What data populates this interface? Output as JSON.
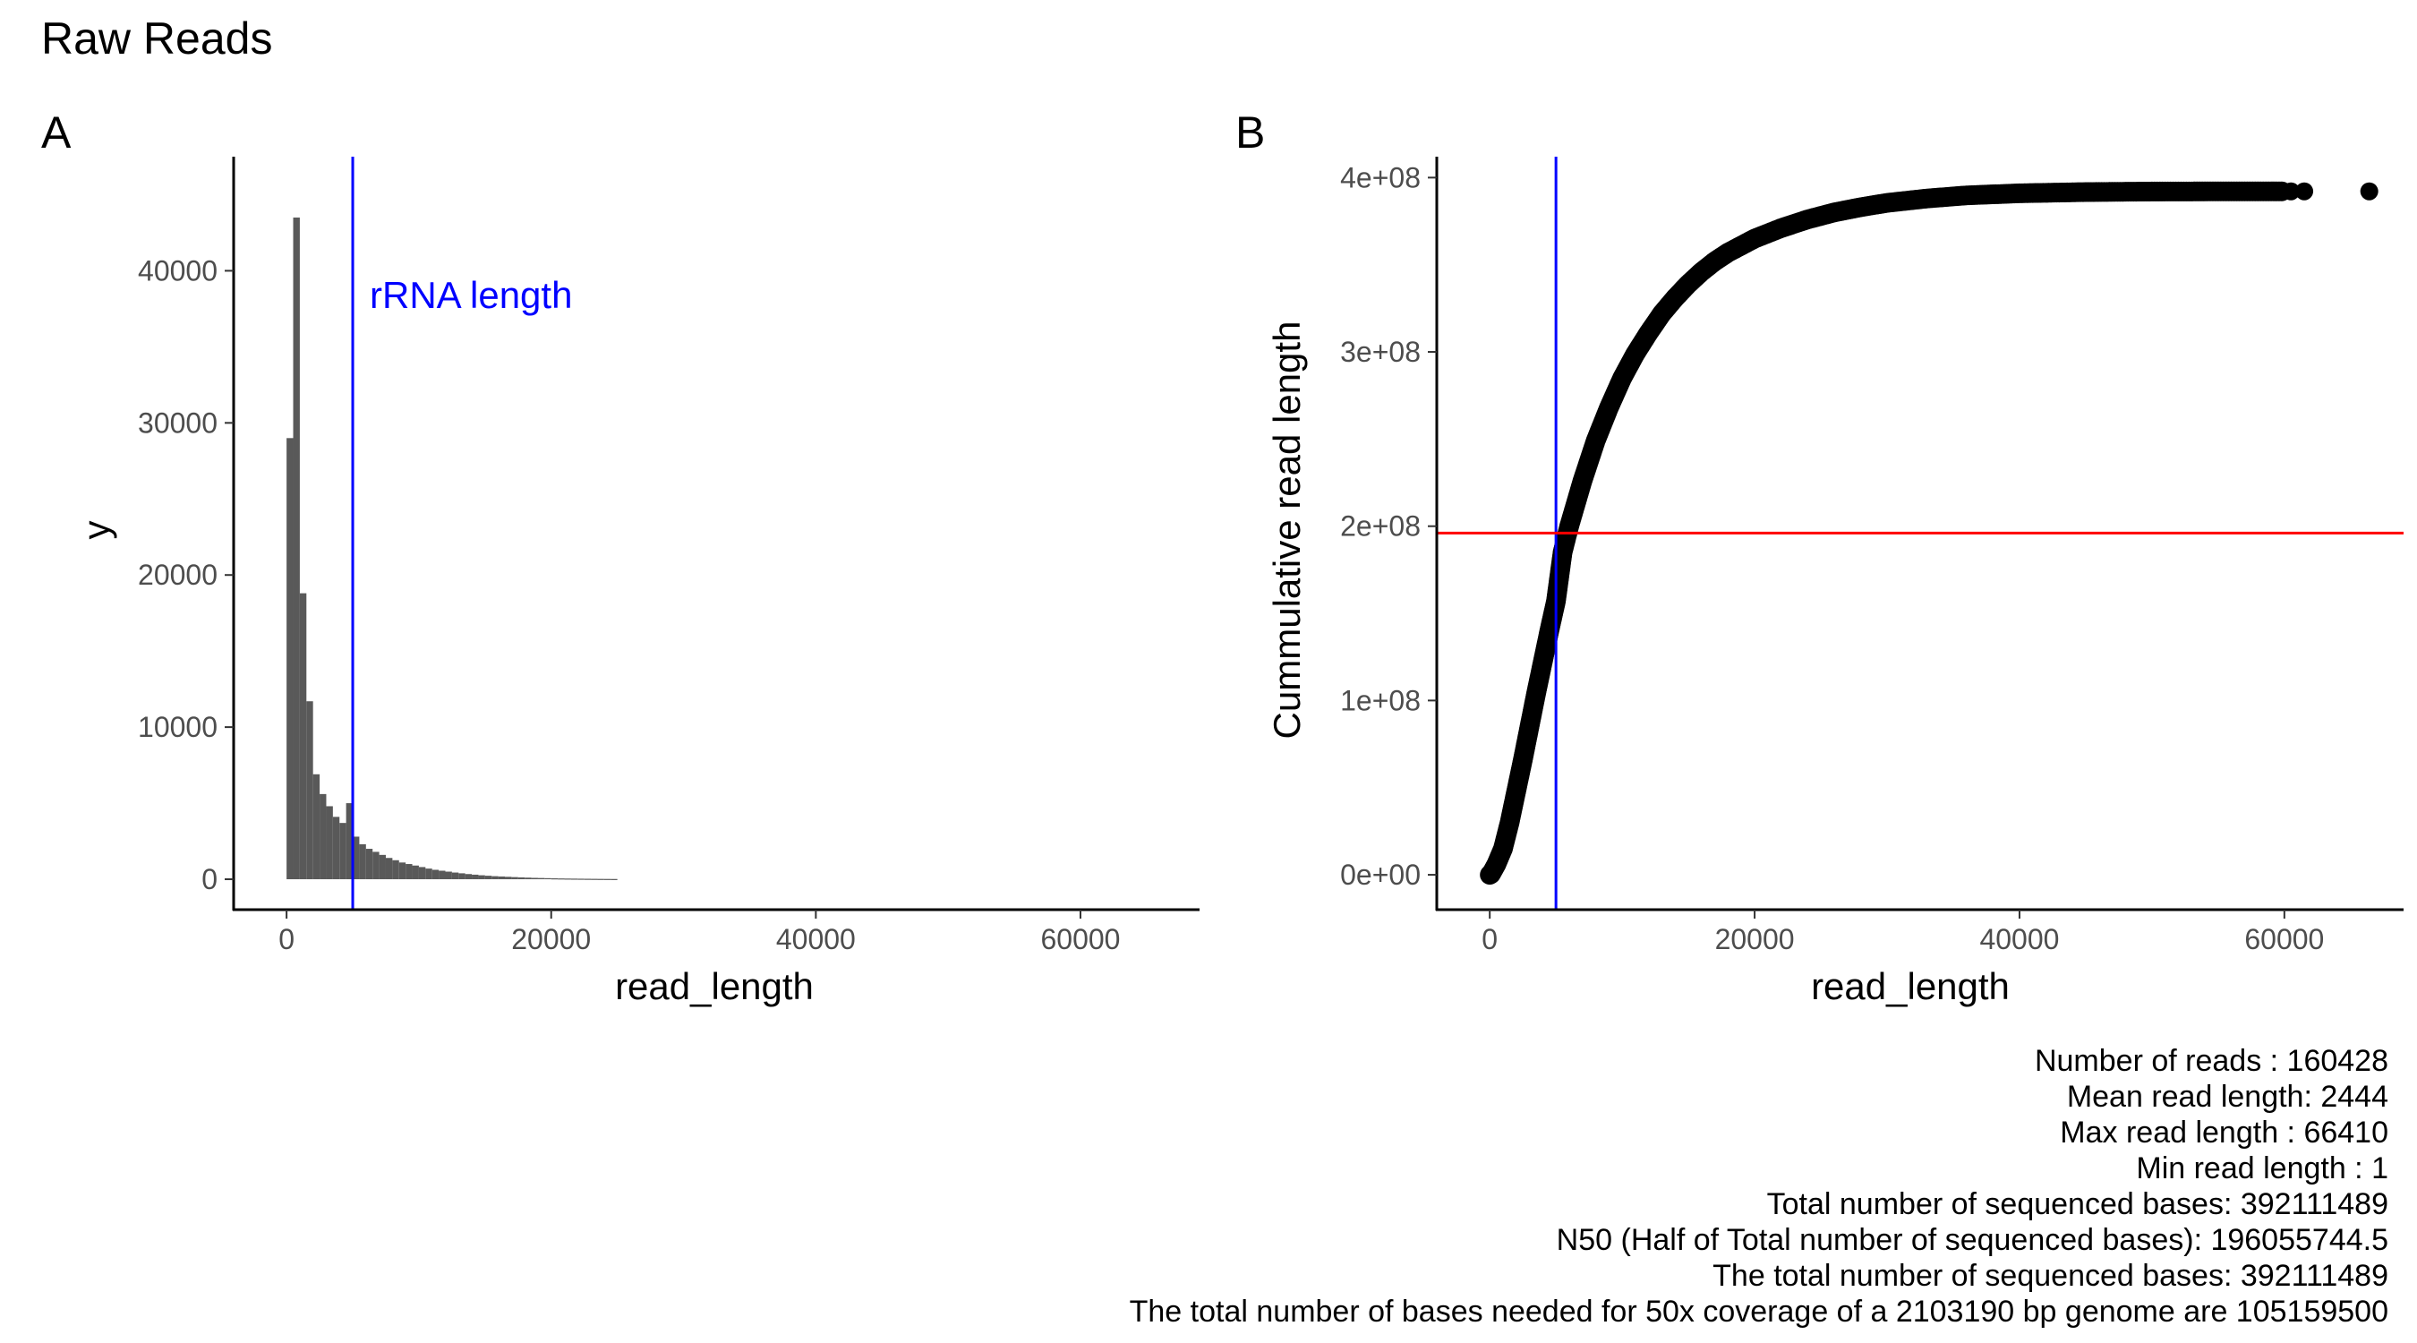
{
  "figure": {
    "title": "Raw Reads",
    "stats_lines": [
      "Number of reads : 160428",
      "Mean read length: 2444",
      "Max read length : 66410",
      "Min read length : 1",
      "Total number of sequenced bases: 392111489",
      "N50 (Half of Total number of sequenced bases): 196055744.5",
      "The total number of sequenced bases: 392111489",
      "The total number of bases needed for 50x coverage of a 2103190 bp genome are  105159500"
    ]
  },
  "chart_data": [
    {
      "panel": "A",
      "type": "bar",
      "xlabel": "read_length",
      "ylabel": "y",
      "xlim": [
        -4000,
        69000
      ],
      "ylim": [
        -2000,
        47500
      ],
      "x_ticks": [
        0,
        20000,
        40000,
        60000
      ],
      "x_tick_labels": [
        "0",
        "20000",
        "40000",
        "60000"
      ],
      "y_ticks": [
        0,
        10000,
        20000,
        30000,
        40000
      ],
      "y_tick_labels": [
        "0",
        "10000",
        "20000",
        "30000",
        "40000"
      ],
      "bin_width": 500,
      "bin_start": 0,
      "values": [
        29000,
        43500,
        18800,
        11700,
        6900,
        5600,
        4800,
        4100,
        3700,
        5000,
        2800,
        2300,
        2000,
        1800,
        1600,
        1400,
        1250,
        1100,
        1000,
        900,
        800,
        700,
        620,
        560,
        500,
        440,
        390,
        340,
        300,
        260,
        230,
        200,
        180,
        160,
        140,
        120,
        105,
        90,
        80,
        70,
        60,
        52,
        45,
        40,
        35,
        30,
        26,
        22,
        19,
        16
      ],
      "vline": {
        "x": 5000,
        "color": "#0000ff",
        "label": "rRNA length"
      },
      "bar_color": "#595959"
    },
    {
      "panel": "B",
      "type": "scatter",
      "xlabel": "read_length",
      "ylabel": "Cummulative read length",
      "xlim": [
        -4000,
        69000
      ],
      "ylim": [
        -20000000,
        412000000
      ],
      "x_ticks": [
        0,
        20000,
        40000,
        60000
      ],
      "x_tick_labels": [
        "0",
        "20000",
        "40000",
        "60000"
      ],
      "y_ticks": [
        0,
        100000000,
        200000000,
        300000000,
        400000000
      ],
      "y_tick_labels": [
        "0e+00",
        "1e+08",
        "2e+08",
        "3e+08",
        "4e+08"
      ],
      "vline": {
        "x": 5000,
        "color": "#0000ff"
      },
      "hline": {
        "y": 196055744.5,
        "color": "#ff0000"
      },
      "curve_points": [
        [
          1,
          0
        ],
        [
          100,
          500000
        ],
        [
          500,
          6000000
        ],
        [
          1000,
          15000000
        ],
        [
          1500,
          30000000
        ],
        [
          2000,
          48000000
        ],
        [
          2500,
          66000000
        ],
        [
          3000,
          85000000
        ],
        [
          3500,
          104000000
        ],
        [
          4000,
          122000000
        ],
        [
          4500,
          140000000
        ],
        [
          5000,
          157000000
        ],
        [
          5500,
          185000000
        ],
        [
          6000,
          200000000
        ],
        [
          7000,
          226000000
        ],
        [
          8000,
          249000000
        ],
        [
          9000,
          268000000
        ],
        [
          10000,
          285000000
        ],
        [
          11000,
          299000000
        ],
        [
          12000,
          311000000
        ],
        [
          13000,
          322000000
        ],
        [
          14000,
          331000000
        ],
        [
          15000,
          339000000
        ],
        [
          16000,
          346000000
        ],
        [
          17000,
          352000000
        ],
        [
          18000,
          357000000
        ],
        [
          19000,
          361000000
        ],
        [
          20000,
          365000000
        ],
        [
          22000,
          371000000
        ],
        [
          24000,
          376000000
        ],
        [
          26000,
          380000000
        ],
        [
          28000,
          383000000
        ],
        [
          30000,
          385500000
        ],
        [
          33000,
          388000000
        ],
        [
          36000,
          389800000
        ],
        [
          40000,
          391000000
        ],
        [
          45000,
          391700000
        ],
        [
          50000,
          392000000
        ],
        [
          55000,
          392100000
        ],
        [
          60000,
          392110000
        ]
      ],
      "sparse_points": [
        [
          48500,
          392030000
        ],
        [
          49500,
          392040000
        ],
        [
          50500,
          392050000
        ],
        [
          51500,
          392060000
        ],
        [
          52500,
          392070000
        ],
        [
          53500,
          392075000
        ],
        [
          54500,
          392080000
        ],
        [
          55500,
          392085000
        ],
        [
          56500,
          392090000
        ],
        [
          57500,
          392095000
        ],
        [
          58500,
          392100000
        ],
        [
          59500,
          392104000
        ],
        [
          60500,
          392107000
        ],
        [
          61500,
          392109000
        ],
        [
          66410,
          392111489
        ]
      ],
      "point_color": "#000000"
    }
  ]
}
